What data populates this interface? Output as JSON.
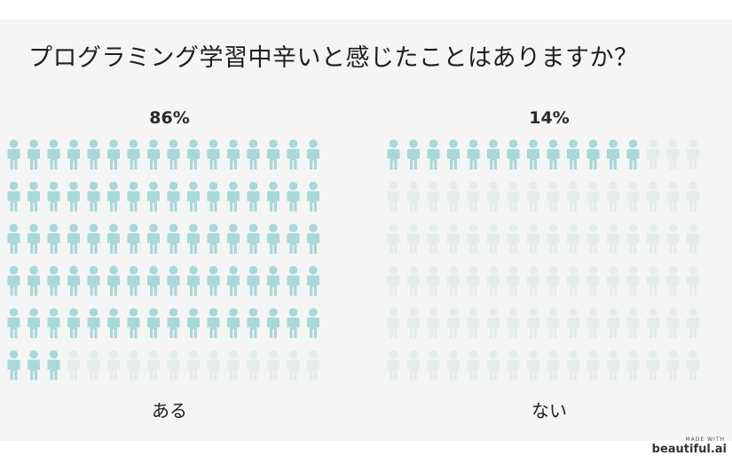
{
  "title": "プログラミング学習中辛いと感じたことはありますか？",
  "chart_data": {
    "type": "pictograph",
    "units_per_chart": 96,
    "colors": {
      "filled": "#a9d8d8",
      "empty": "#e5eceb"
    },
    "series": [
      {
        "label": "ある",
        "percent_label": "86%",
        "value": 86
      },
      {
        "label": "ない",
        "percent_label": "14%",
        "value": 14
      }
    ]
  },
  "watermark": {
    "small": "MADE WITH",
    "logo": "beautiful.ai"
  }
}
